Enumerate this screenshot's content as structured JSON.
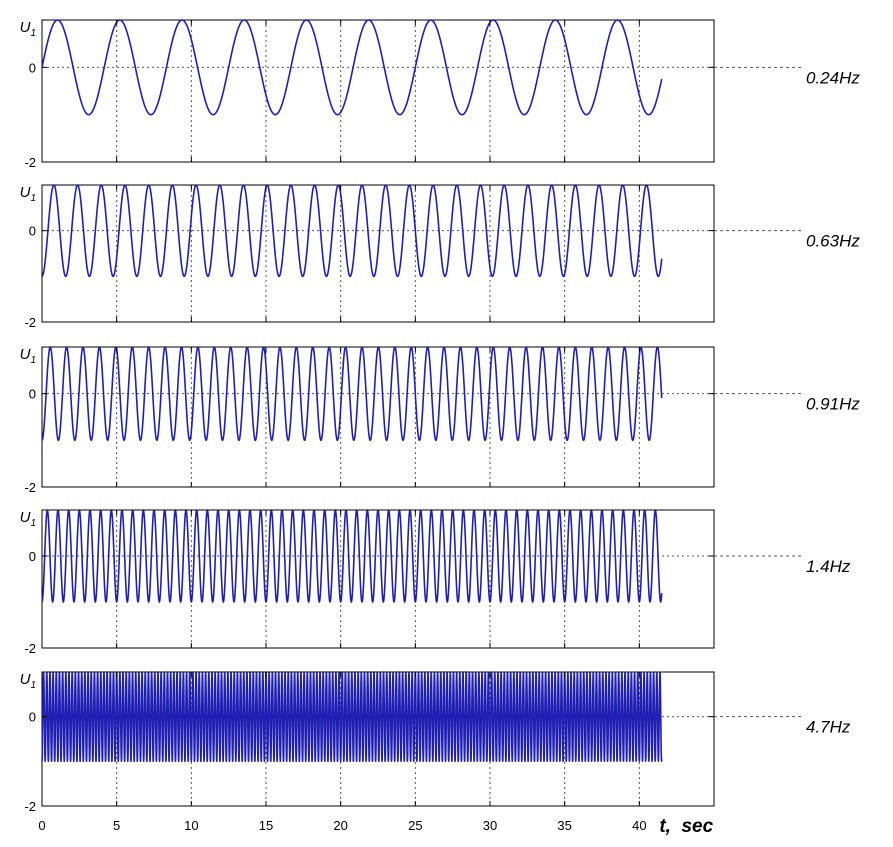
{
  "chart_data": [
    {
      "type": "line",
      "series": [
        {
          "name": "0.24Hz",
          "frequency_hz": 0.24,
          "offset": 0,
          "amplitude": 1,
          "phase_deg": 0
        }
      ],
      "ylabel": "U",
      "ylabel_sub": "1",
      "ylim": [
        -2,
        1
      ],
      "yticks": [
        "0",
        "-2"
      ],
      "xlim": [
        0,
        45
      ],
      "x_end": 41.5,
      "grid": true,
      "color": "#1f1fb4"
    },
    {
      "type": "line",
      "series": [
        {
          "name": "0.63Hz",
          "frequency_hz": 0.63,
          "offset": 0,
          "amplitude": 1,
          "phase_deg": 270
        }
      ],
      "ylabel": "U",
      "ylabel_sub": "1",
      "ylim": [
        -2,
        1
      ],
      "yticks": [
        "0",
        "-2"
      ],
      "xlim": [
        0,
        45
      ],
      "x_end": 41.5,
      "grid": true,
      "color": "#1f1fb4"
    },
    {
      "type": "line",
      "series": [
        {
          "name": "0.91Hz",
          "frequency_hz": 0.91,
          "offset": 0,
          "amplitude": 1,
          "phase_deg": 270
        }
      ],
      "ylabel": "U",
      "ylabel_sub": "1",
      "ylim": [
        -2,
        1
      ],
      "yticks": [
        "0",
        "-2"
      ],
      "xlim": [
        0,
        45
      ],
      "x_end": 41.5,
      "grid": true,
      "color": "#1f1fb4"
    },
    {
      "type": "line",
      "series": [
        {
          "name": "1.4Hz",
          "frequency_hz": 1.4,
          "offset": 0,
          "amplitude": 1,
          "phase_deg": 270
        }
      ],
      "ylabel": "U",
      "ylabel_sub": "1",
      "ylim": [
        -2,
        1
      ],
      "yticks": [
        "0",
        "-2"
      ],
      "xlim": [
        0,
        45
      ],
      "x_end": 41.5,
      "grid": true,
      "color": "#1f1fb4"
    },
    {
      "type": "line",
      "series": [
        {
          "name": "4.7Hz",
          "frequency_hz": 4.7,
          "offset": 0,
          "amplitude": 1,
          "phase_deg": 270
        }
      ],
      "ylabel": "U",
      "ylabel_sub": "1",
      "ylim": [
        -2,
        1
      ],
      "yticks": [
        "0",
        "-2"
      ],
      "xlim": [
        0,
        45
      ],
      "x_end": 41.5,
      "grid": true,
      "color": "#1f1fb4"
    }
  ],
  "shared_x_axis": {
    "ticks": [
      0,
      5,
      10,
      15,
      20,
      25,
      30,
      35,
      40
    ],
    "tick_labels": [
      "0",
      "5",
      "10",
      "15",
      "20",
      "25",
      "30",
      "35",
      "40"
    ],
    "label": "t,  sec"
  }
}
